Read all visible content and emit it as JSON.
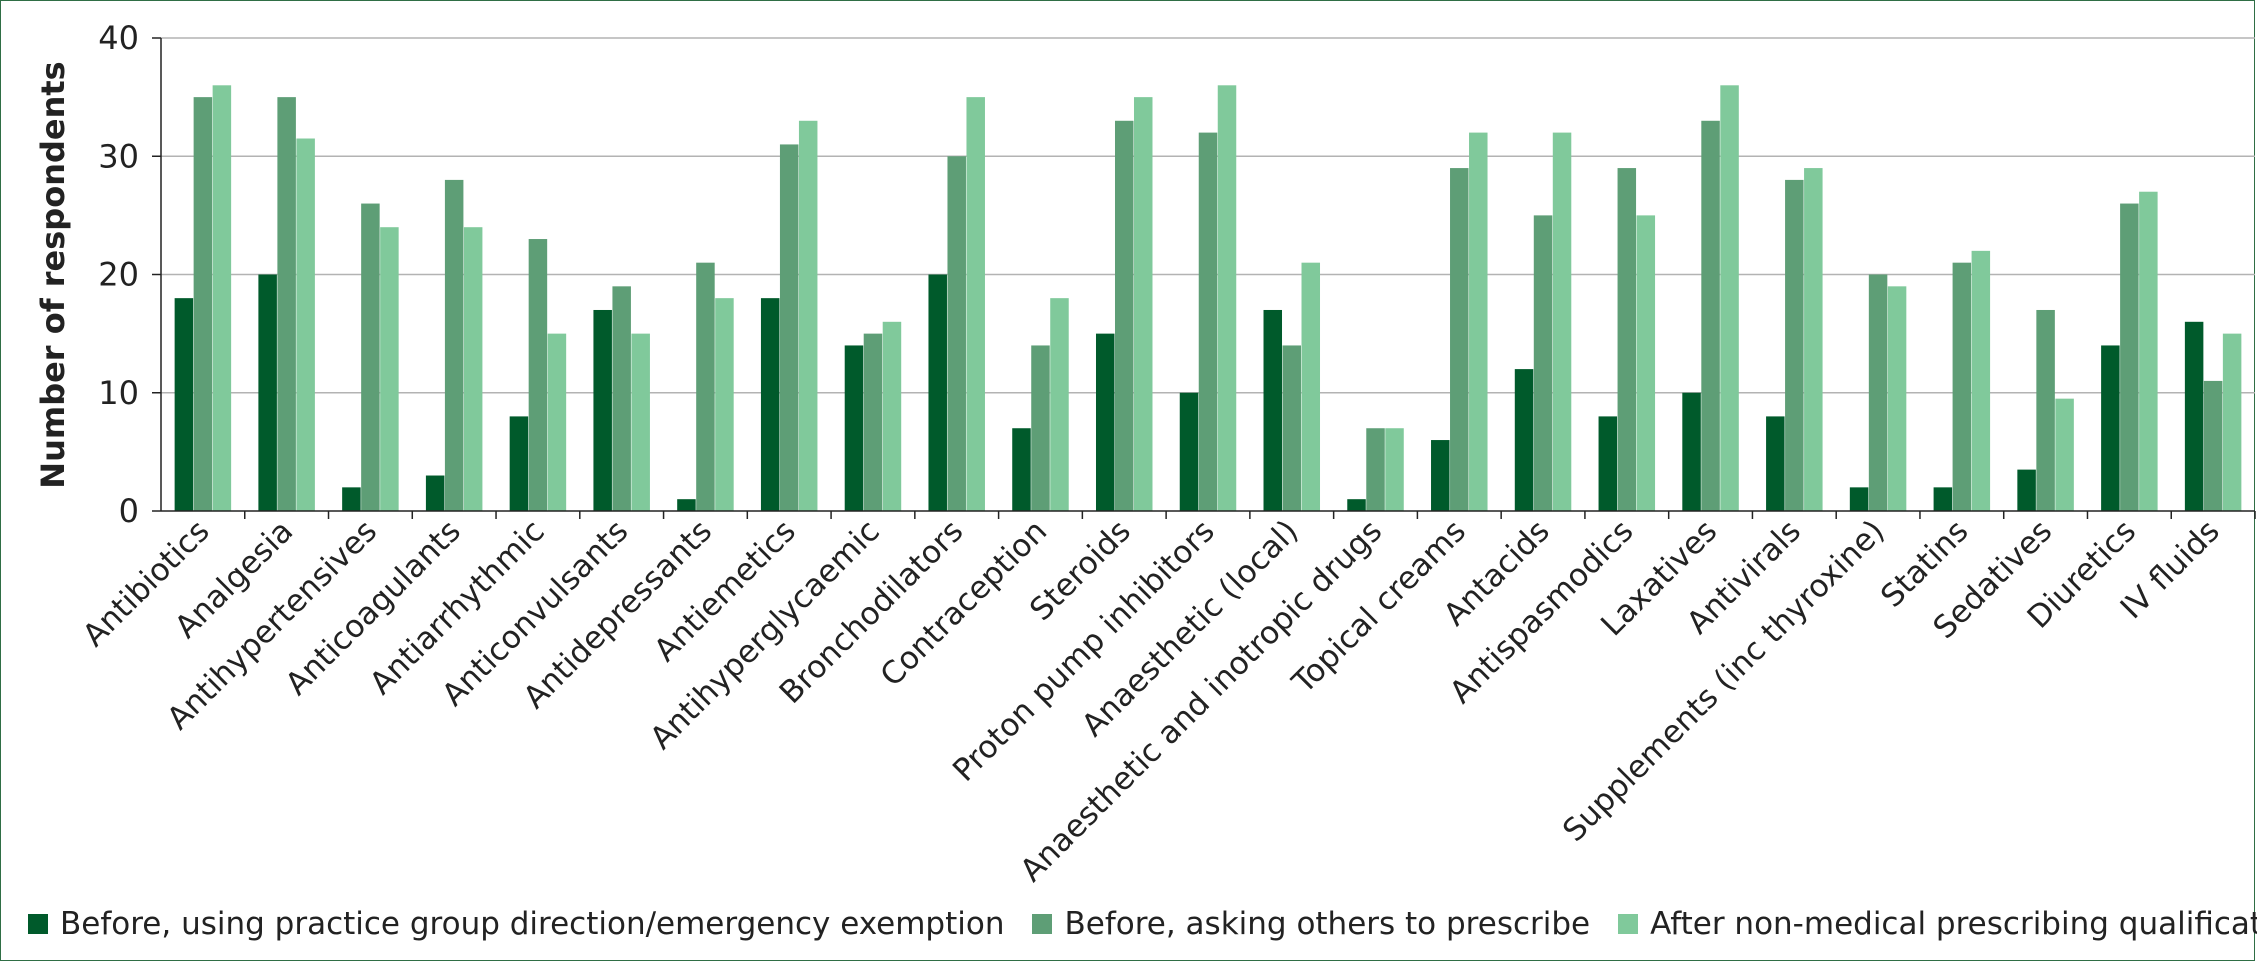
{
  "colors": {
    "series": [
      "#005a2b",
      "#5e9e76",
      "#80c99b"
    ],
    "grid": "#b3b3b3",
    "axis": "#222222",
    "frame": "#2f6e45"
  },
  "chart_data": {
    "type": "bar",
    "title": "",
    "xlabel": "",
    "ylabel": "Number of respondents",
    "ylim": [
      0,
      40
    ],
    "yticks": [
      0,
      10,
      20,
      30,
      40
    ],
    "grid": true,
    "legend_position": "bottom",
    "categories": [
      "Antibiotics",
      "Analgesia",
      "Antihypertensives",
      "Anticoagulants",
      "Antiarrhythmic",
      "Anticonvulsants",
      "Antidepressants",
      "Antiemetics",
      "Antihyperglycaemic",
      "Bronchodilators",
      "Contraception",
      "Steroids",
      "Proton pump inhibitors",
      "Anaesthetic (local)",
      "Anaesthetic and inotropic drugs",
      "Topical creams",
      "Antacids",
      "Antispasmodics",
      "Laxatives",
      "Antivirals",
      "Supplements (inc thyroxine)",
      "Statins",
      "Sedatives",
      "Diuretics",
      "IV fluids"
    ],
    "series": [
      {
        "name": "Before, using practice group direction/emergency exemption",
        "values": [
          18,
          20,
          2,
          3,
          8,
          17,
          1,
          18,
          14,
          20,
          7,
          15,
          10,
          17,
          1,
          6,
          12,
          8,
          10,
          8,
          2,
          2,
          3.5,
          14,
          16
        ]
      },
      {
        "name": "Before, asking others to prescribe",
        "values": [
          35,
          35,
          26,
          28,
          23,
          19,
          21,
          31,
          15,
          30,
          14,
          33,
          32,
          14,
          7,
          29,
          25,
          29,
          33,
          28,
          20,
          21,
          17,
          26,
          11
        ]
      },
      {
        "name": "After non-medical prescribing qualification",
        "values": [
          36,
          31.5,
          24,
          24,
          15,
          15,
          18,
          33,
          16,
          35,
          18,
          35,
          36,
          21,
          7,
          32,
          32,
          25,
          36,
          29,
          19,
          22,
          9.5,
          27,
          15
        ]
      }
    ]
  }
}
